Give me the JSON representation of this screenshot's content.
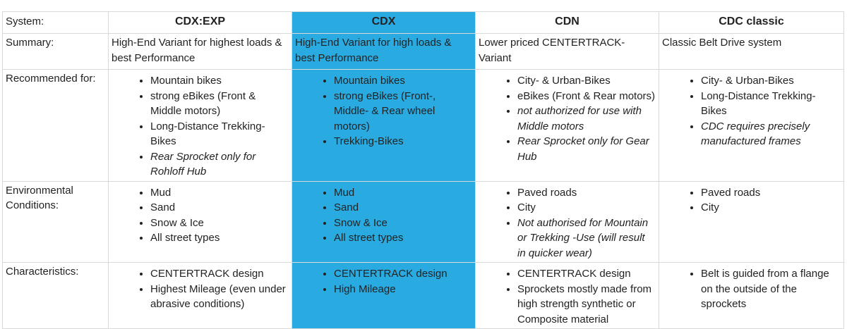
{
  "header": {
    "row_label": "System:",
    "columns": [
      "CDX:EXP",
      "CDX",
      "CDN",
      "CDC classic"
    ]
  },
  "summary": {
    "row_label": "Summary:",
    "cells": [
      "High-End Variant for highest loads & best Performance",
      "High-End Variant for high loads & best Performance",
      "Lower priced CENTERTRACK- Variant",
      "Classic Belt Drive system"
    ]
  },
  "recommended": {
    "row_label": "Recommended for:",
    "cells": [
      [
        {
          "text": "Mountain bikes",
          "italic": false
        },
        {
          "text": "strong eBikes (Front & Middle motors)",
          "italic": false
        },
        {
          "text": "Long-Distance Trekking-Bikes",
          "italic": false
        },
        {
          "text": "Rear Sprocket only for Rohloff Hub",
          "italic": true
        }
      ],
      [
        {
          "text": "Mountain bikes",
          "italic": false
        },
        {
          "text": "strong eBikes (Front-, Middle- & Rear wheel motors)",
          "italic": false
        },
        {
          "text": "Trekking-Bikes",
          "italic": false
        }
      ],
      [
        {
          "text": "City- & Urban-Bikes",
          "italic": false
        },
        {
          "text": "eBikes (Front & Rear motors)",
          "italic": false
        },
        {
          "text": "not authorized for use with Middle motors",
          "italic": true
        },
        {
          "text": "Rear Sprocket only for Gear Hub",
          "italic": true
        }
      ],
      [
        {
          "text": "City- & Urban-Bikes",
          "italic": false
        },
        {
          "text": "Long-Distance Trekking-Bikes",
          "italic": false
        },
        {
          "text": "CDC requires precisely manufactured frames",
          "italic": true
        }
      ]
    ]
  },
  "environment": {
    "row_label": "Environmental Conditions:",
    "cells": [
      [
        {
          "text": "Mud",
          "italic": false
        },
        {
          "text": "Sand",
          "italic": false
        },
        {
          "text": "Snow & Ice",
          "italic": false
        },
        {
          "text": "All street types",
          "italic": false
        }
      ],
      [
        {
          "text": "Mud",
          "italic": false
        },
        {
          "text": "Sand",
          "italic": false
        },
        {
          "text": "Snow & Ice",
          "italic": false
        },
        {
          "text": "All street types",
          "italic": false
        }
      ],
      [
        {
          "text": "Paved roads",
          "italic": false
        },
        {
          "text": "City",
          "italic": false
        },
        {
          "text": "Not authorised for Mountain or Trekking -Use (will result in quicker wear)",
          "italic": true
        }
      ],
      [
        {
          "text": "Paved roads",
          "italic": false
        },
        {
          "text": "City",
          "italic": false
        }
      ]
    ]
  },
  "characteristics": {
    "row_label": "Characteristics:",
    "cells": [
      [
        {
          "text": "CENTERTRACK design",
          "italic": false
        },
        {
          "text": "Highest Mileage (even under abrasive conditions)",
          "italic": false
        }
      ],
      [
        {
          "text": "CENTERTRACK design",
          "italic": false
        },
        {
          "text": "High Mileage",
          "italic": false
        }
      ],
      [
        {
          "text": "CENTERTRACK design",
          "italic": false
        },
        {
          "text": "Sprockets mostly made from high strength synthetic or Composite material",
          "italic": false
        }
      ],
      [
        {
          "text": "Belt is guided from a flange on the outside of the sprockets",
          "italic": false
        }
      ]
    ]
  },
  "colors": {
    "highlight_column": "#29abe2",
    "grid": "#d9d9d9"
  }
}
